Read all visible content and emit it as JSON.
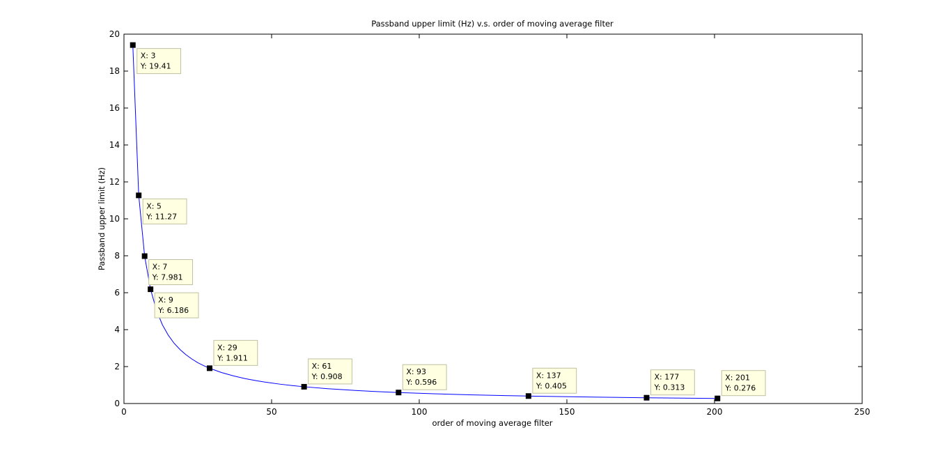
{
  "chart_data": {
    "type": "line",
    "title": "Passband upper limit (Hz) v.s. order of moving average filter",
    "xlabel": "order of moving average filter",
    "ylabel": "Passband upper limit (Hz)",
    "xlim": [
      0,
      250
    ],
    "ylim": [
      0,
      20
    ],
    "xticks": [
      0,
      50,
      100,
      150,
      200,
      250
    ],
    "yticks": [
      0,
      2,
      4,
      6,
      8,
      10,
      12,
      14,
      16,
      18,
      20
    ],
    "grid": false,
    "legend": "none",
    "line_color": "#0000ff",
    "series": [
      {
        "x": [
          3,
          5,
          7,
          9,
          11,
          13,
          15,
          17,
          19,
          21,
          23,
          25,
          27,
          29,
          33,
          37,
          41,
          45,
          49,
          53,
          57,
          61,
          69,
          77,
          85,
          93,
          105,
          117,
          129,
          137,
          149,
          161,
          177,
          189,
          201
        ],
        "values": [
          19.41,
          11.27,
          7.981,
          6.186,
          5.05,
          4.27,
          3.7,
          3.26,
          2.92,
          2.64,
          2.41,
          2.21,
          2.05,
          1.911,
          1.68,
          1.5,
          1.35,
          1.23,
          1.13,
          1.045,
          0.973,
          0.908,
          0.803,
          0.72,
          0.652,
          0.596,
          0.528,
          0.474,
          0.43,
          0.405,
          0.372,
          0.344,
          0.313,
          0.293,
          0.276
        ]
      }
    ],
    "datatips": [
      {
        "x": 3,
        "y": 19.41,
        "x_text": "X: 3",
        "y_text": "Y: 19.41"
      },
      {
        "x": 5,
        "y": 11.27,
        "x_text": "X: 5",
        "y_text": "Y: 11.27"
      },
      {
        "x": 7,
        "y": 7.981,
        "x_text": "X: 7",
        "y_text": "Y: 7.981"
      },
      {
        "x": 9,
        "y": 6.186,
        "x_text": "X: 9",
        "y_text": "Y: 6.186"
      },
      {
        "x": 29,
        "y": 1.911,
        "x_text": "X: 29",
        "y_text": "Y: 1.911"
      },
      {
        "x": 61,
        "y": 0.908,
        "x_text": "X: 61",
        "y_text": "Y: 0.908"
      },
      {
        "x": 93,
        "y": 0.596,
        "x_text": "X: 93",
        "y_text": "Y: 0.596"
      },
      {
        "x": 137,
        "y": 0.405,
        "x_text": "X: 137",
        "y_text": "Y: 0.405"
      },
      {
        "x": 177,
        "y": 0.313,
        "x_text": "X: 177",
        "y_text": "Y: 0.313"
      },
      {
        "x": 201,
        "y": 0.276,
        "x_text": "X: 201",
        "y_text": "Y: 0.276"
      }
    ],
    "datatip_style": {
      "background": "#ffffe1",
      "border": "#c0c0a0",
      "marker": "#000000"
    }
  }
}
